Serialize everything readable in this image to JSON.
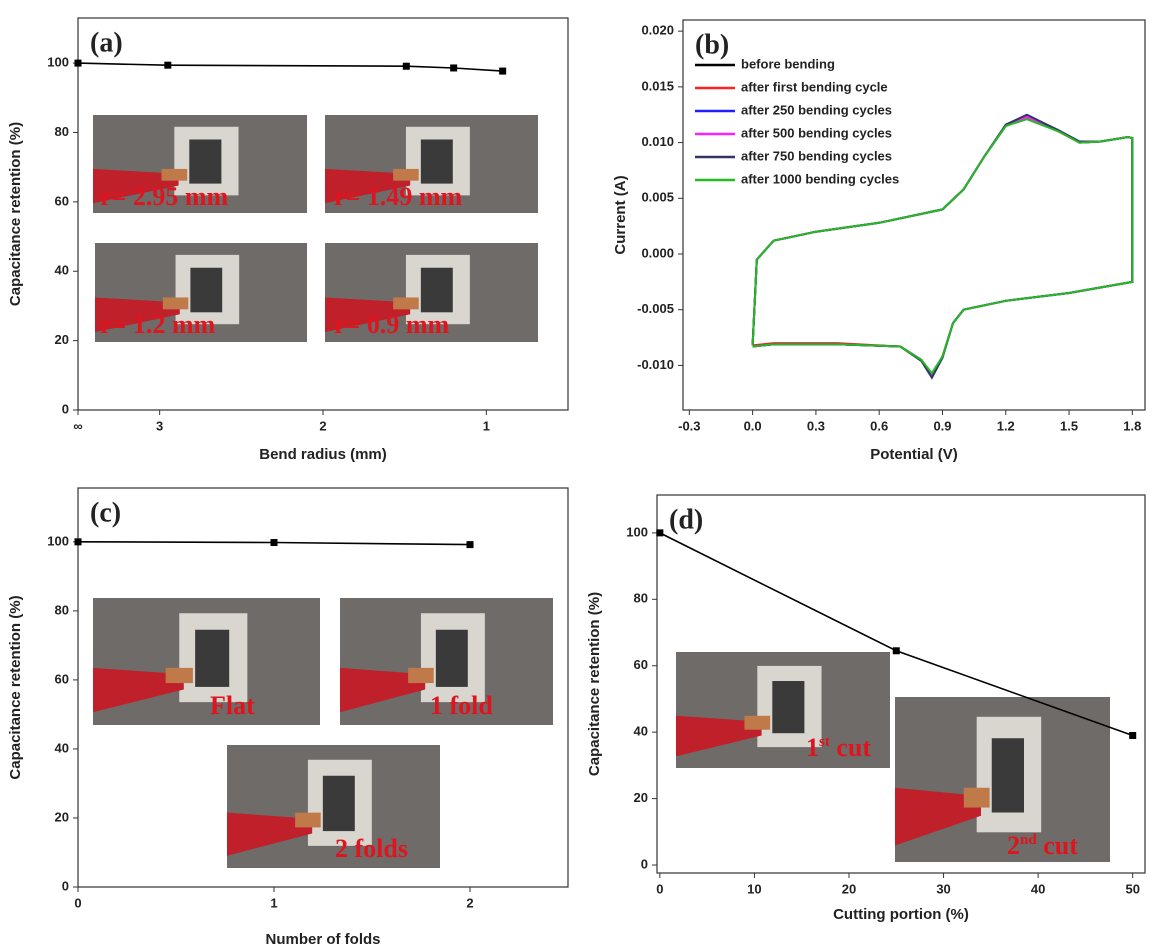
{
  "chart_data": [
    {
      "type": "line",
      "title": "(a)",
      "xlabel": "Bend radius (mm)",
      "ylabel": "Capacitance retention (%)",
      "x": [
        null,
        2.95,
        1.49,
        1.2,
        0.9
      ],
      "series": [
        {
          "color": "#000000",
          "values": [
            100,
            99.4,
            99.1,
            98.6,
            97.7
          ]
        }
      ],
      "marker": "square",
      "xlim": [
        3.5,
        0.5
      ],
      "xticks": [
        {
          "value": null,
          "label": "∞"
        },
        3,
        2,
        1
      ],
      "ylim": [
        0,
        113
      ],
      "yticks": [
        0,
        20,
        40,
        60,
        80,
        100
      ],
      "annotations": [
        {
          "text": "r= 2.95 mm"
        },
        {
          "text": "r= 1.49 mm"
        },
        {
          "text": "r= 1.2 mm"
        },
        {
          "text": "r= 0.9 mm"
        }
      ]
    },
    {
      "type": "line",
      "title": "(b)",
      "xlabel": "Potential (V)",
      "ylabel": "Current (A)",
      "x": [
        0,
        0.02,
        0.1,
        0.3,
        0.6,
        0.9,
        1.0,
        1.1,
        1.2,
        1.3,
        1.45,
        1.55,
        1.65,
        1.78,
        1.8,
        1.8,
        1.5,
        1.2,
        1.0,
        0.95,
        0.9,
        0.85,
        0.8,
        0.7,
        0.4,
        0.1,
        0
      ],
      "series": [
        {
          "name": "before bending",
          "color": "#000000",
          "values": [
            -0.0082,
            -0.0005,
            0.0012,
            0.002,
            0.0028,
            0.004,
            0.0058,
            0.0088,
            0.0115,
            0.0123,
            0.011,
            0.01,
            0.0101,
            0.0105,
            0.0104,
            -0.0025,
            -0.0035,
            -0.0042,
            -0.005,
            -0.0062,
            -0.0092,
            -0.0109,
            -0.0095,
            -0.0083,
            -0.0081,
            -0.0081,
            -0.0083
          ]
        },
        {
          "name": "after first  bending cycle",
          "color": "#ff2020",
          "values": [
            -0.0082,
            -0.0005,
            0.0012,
            0.002,
            0.0028,
            0.004,
            0.0058,
            0.0088,
            0.0115,
            0.0122,
            0.011,
            0.01,
            0.0101,
            0.0105,
            0.0104,
            -0.0025,
            -0.0035,
            -0.0042,
            -0.005,
            -0.0062,
            -0.0092,
            -0.0108,
            -0.0095,
            -0.0083,
            -0.008,
            -0.008,
            -0.0082
          ]
        },
        {
          "name": "after 250 bending cycles",
          "color": "#2020ff",
          "values": [
            -0.0082,
            -0.0005,
            0.0012,
            0.002,
            0.0028,
            0.004,
            0.0058,
            0.0088,
            0.0116,
            0.0124,
            0.0111,
            0.01,
            0.0101,
            0.0105,
            0.0104,
            -0.0025,
            -0.0035,
            -0.0042,
            -0.005,
            -0.0062,
            -0.0093,
            -0.011,
            -0.0095,
            -0.0083,
            -0.0081,
            -0.0081,
            -0.0083
          ]
        },
        {
          "name": "after 500 bending cycles",
          "color": "#ff20ff",
          "values": [
            -0.0082,
            -0.0005,
            0.0012,
            0.002,
            0.0028,
            0.004,
            0.0058,
            0.0088,
            0.0115,
            0.0123,
            0.011,
            0.01,
            0.0101,
            0.0105,
            0.0104,
            -0.0025,
            -0.0035,
            -0.0042,
            -0.005,
            -0.0062,
            -0.0092,
            -0.0109,
            -0.0095,
            -0.0083,
            -0.0081,
            -0.0081,
            -0.0083
          ]
        },
        {
          "name": "after 750 bending cycles",
          "color": "#333366",
          "values": [
            -0.0082,
            -0.0005,
            0.0012,
            0.002,
            0.0028,
            0.004,
            0.0058,
            0.0088,
            0.0116,
            0.0125,
            0.0111,
            0.0101,
            0.0101,
            0.0105,
            0.0104,
            -0.0025,
            -0.0035,
            -0.0042,
            -0.005,
            -0.0062,
            -0.0093,
            -0.0111,
            -0.0096,
            -0.0083,
            -0.0081,
            -0.0081,
            -0.0083
          ]
        },
        {
          "name": "after 1000 bending cycles",
          "color": "#22bb22",
          "values": [
            -0.0082,
            -0.0005,
            0.0012,
            0.002,
            0.0028,
            0.004,
            0.0058,
            0.0088,
            0.0115,
            0.0121,
            0.011,
            0.01,
            0.0101,
            0.0105,
            0.0104,
            -0.0025,
            -0.0035,
            -0.0042,
            -0.005,
            -0.0062,
            -0.0092,
            -0.0107,
            -0.0095,
            -0.0083,
            -0.0081,
            -0.0081,
            -0.0083
          ]
        }
      ],
      "legend": "upper left",
      "xlim": [
        -0.33,
        1.86
      ],
      "xticks": [
        -0.3,
        {
          "value": 0,
          "label": "0.0"
        },
        0.3,
        0.6,
        0.9,
        1.2,
        1.5,
        1.8
      ],
      "ylim": [
        -0.014,
        0.021
      ],
      "yticks": [
        {
          "value": -0.01,
          "label": "-0.010"
        },
        -0.005,
        {
          "value": 0,
          "label": "0.000"
        },
        0.005,
        {
          "value": 0.01,
          "label": "0.010"
        },
        0.015,
        {
          "value": 0.02,
          "label": "0.020"
        }
      ]
    },
    {
      "type": "line",
      "title": "(c)",
      "xlabel": "Number of folds",
      "ylabel": "Capacitance retention (%)",
      "x": [
        0,
        1,
        2
      ],
      "series": [
        {
          "color": "#000000",
          "values": [
            100,
            99.8,
            99.2
          ]
        }
      ],
      "marker": "square",
      "xlim": [
        0,
        2.5
      ],
      "xticks": [
        0,
        1,
        2
      ],
      "ylim": [
        0,
        115.6
      ],
      "yticks": [
        0,
        20,
        40,
        60,
        80,
        100
      ],
      "annotations": [
        {
          "text": "Flat"
        },
        {
          "text": "1 fold"
        },
        {
          "text": "2 folds"
        }
      ]
    },
    {
      "type": "line",
      "title": "(d)",
      "xlabel": "Cutting portion (%)",
      "ylabel": "Capacitance retention (%)",
      "x": [
        0,
        25,
        50
      ],
      "series": [
        {
          "color": "#000000",
          "values": [
            100,
            64.5,
            39
          ]
        }
      ],
      "marker": "square",
      "xlim": [
        -0.3,
        51.3
      ],
      "xticks": [
        0,
        10,
        20,
        30,
        40,
        50
      ],
      "ylim": [
        -2.4,
        111.4
      ],
      "yticks": [
        0,
        20,
        40,
        60,
        80,
        100
      ],
      "annotations": [
        {
          "text": "1",
          "superscript": "st",
          "text_after": " cut"
        },
        {
          "text": "2",
          "superscript": "nd",
          "text_after": " cut"
        }
      ]
    }
  ]
}
